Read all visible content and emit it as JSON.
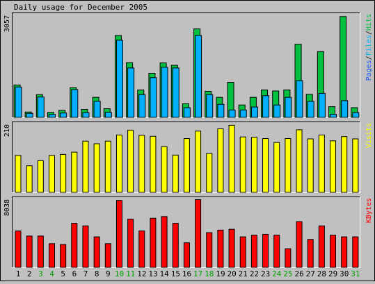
{
  "chart_data": {
    "type": "bar",
    "title": "Daily usage for December 2005",
    "categories": [
      "1",
      "2",
      "3",
      "4",
      "5",
      "6",
      "7",
      "8",
      "9",
      "10",
      "11",
      "12",
      "13",
      "14",
      "15",
      "16",
      "17",
      "18",
      "19",
      "20",
      "21",
      "22",
      "23",
      "24",
      "25",
      "26",
      "27",
      "28",
      "29",
      "30",
      "31"
    ],
    "weekend_days": [
      "3",
      "4",
      "10",
      "11",
      "17",
      "18",
      "24",
      "25",
      "31"
    ],
    "colors": {
      "hits": "#00c040",
      "files": "#00b0ff",
      "pages": "#2060ff",
      "visits": "#ffff00",
      "kbytes": "#ff0000",
      "weekday_label": "#000000",
      "weekend_label": "#00a000"
    },
    "panels": [
      {
        "id": "hits_files_pages",
        "ymax_label": "3057",
        "ylim": [
          0,
          3057
        ],
        "legend": [
          {
            "text": "Pages",
            "color": "#2060ff"
          },
          {
            "text": "/",
            "color": "#000000"
          },
          {
            "text": "Files",
            "color": "#00b0ff"
          },
          {
            "text": "/",
            "color": "#000000"
          },
          {
            "text": "Hits",
            "color": "#00c040"
          }
        ],
        "series": [
          {
            "name": "Hits",
            "values": [
              970,
              160,
              680,
              150,
              210,
              890,
              240,
              600,
              260,
              2450,
              1640,
              820,
              1320,
              1630,
              1560,
              410,
              2650,
              780,
              600,
              1050,
              370,
              600,
              820,
              790,
              820,
              2190,
              690,
              1970,
              320,
              3020,
              290
            ]
          },
          {
            "name": "Files",
            "values": [
              910,
              120,
              610,
              90,
              130,
              830,
              140,
              480,
              150,
              2310,
              1480,
              680,
              1190,
              1500,
              1480,
              290,
              2450,
              680,
              390,
              220,
              220,
              310,
              650,
              370,
              600,
              1100,
              480,
              720,
              90,
              500,
              140
            ]
          }
        ]
      },
      {
        "id": "visits",
        "ymax_label": "210",
        "ylim": [
          0,
          210
        ],
        "legend": [
          {
            "text": "Visits",
            "color": "#ffff00"
          }
        ],
        "series": [
          {
            "name": "Visits",
            "values": [
              114,
              82,
              98,
              114,
              117,
              124,
              158,
              150,
              158,
              177,
              192,
              176,
              173,
              141,
              115,
              166,
              189,
              120,
              196,
              207,
              171,
              170,
              166,
              154,
              166,
              193,
              165,
              177,
              159,
              172,
              165
            ]
          }
        ]
      },
      {
        "id": "kbytes",
        "ymax_label": "8038",
        "ylim": [
          0,
          8038
        ],
        "legend": [
          {
            "text": "KBytes",
            "color": "#ff0000"
          }
        ],
        "series": [
          {
            "name": "KBytes",
            "values": [
              4300,
              3700,
              3700,
              2800,
              2700,
              5200,
              4900,
              3600,
              2800,
              7900,
              5700,
              4300,
              5800,
              6000,
              5200,
              2900,
              8000,
              4100,
              4400,
              4500,
              3600,
              3800,
              3900,
              3800,
              2200,
              5400,
              3300,
              4900,
              3800,
              3600,
              3600
            ]
          }
        ]
      }
    ]
  }
}
